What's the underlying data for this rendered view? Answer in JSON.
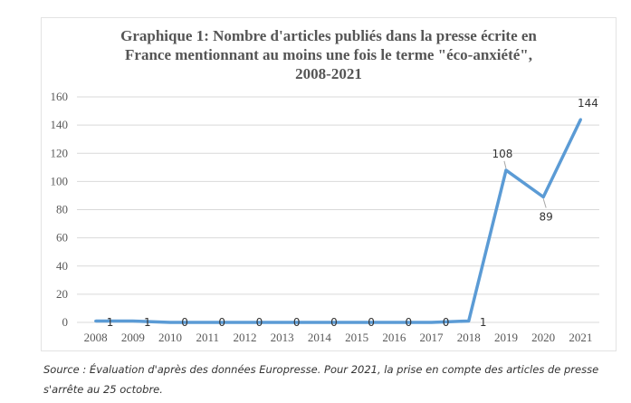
{
  "chart_data": {
    "type": "line",
    "title": "Graphique 1: Nombre d'articles publiés dans la presse écrite en France mentionnant au moins une fois le terme \"éco-anxiété\", 2008-2021",
    "title_lines": [
      "Graphique 1: Nombre d'articles publiés dans la presse écrite en",
      "France mentionnant au moins une fois le terme \"éco-anxiété\",",
      "2008-2021"
    ],
    "categories": [
      "2008",
      "2009",
      "2010",
      "2011",
      "2012",
      "2013",
      "2014",
      "2015",
      "2016",
      "2017",
      "2018",
      "2019",
      "2020",
      "2021"
    ],
    "values": [
      1,
      1,
      0,
      0,
      0,
      0,
      0,
      0,
      0,
      0,
      1,
      108,
      89,
      144
    ],
    "ylim": [
      0,
      160
    ],
    "yticks": [
      0,
      20,
      40,
      60,
      80,
      100,
      120,
      140,
      160
    ],
    "xlabel": "",
    "ylabel": "",
    "grid": true,
    "legend": "none",
    "line_color": "#5b9bd5"
  },
  "source": "Source : Évaluation d'après des données Europresse. Pour 2021, la prise en compte des articles de presse s'arrête au 25 octobre."
}
